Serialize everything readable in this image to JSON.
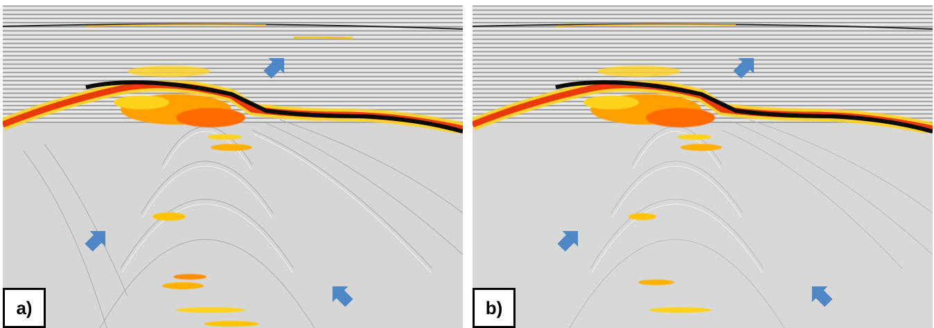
{
  "figure": {
    "panels": [
      {
        "id": "a",
        "label": "a)",
        "arrow_count": 3
      },
      {
        "id": "b",
        "label": "b)",
        "arrow_count": 3
      }
    ]
  },
  "colors": {
    "background_gray": "#d9d9d9",
    "stripe_dark": "#6b6b6b",
    "stripe_light": "#f2f2f2",
    "reflector_black": "#0a0a0a",
    "anomaly_red": "#e83a0a",
    "anomaly_orange": "#ff8c00",
    "anomaly_yellow": "#ffd21f",
    "arrow_blue": "#4f86c6",
    "label_border": "#000000"
  },
  "icons": [
    "arrow-icon"
  ]
}
